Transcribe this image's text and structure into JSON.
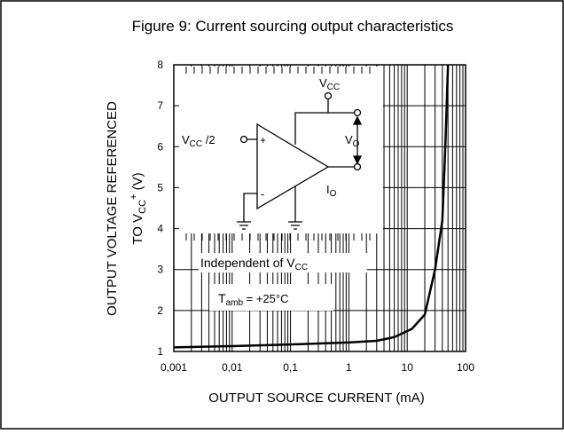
{
  "chart_data": {
    "type": "line",
    "title": "Figure 9: Current sourcing output characteristics",
    "x_label": "OUTPUT SOURCE CURRENT (mA)",
    "y_label": [
      "OUTPUT VOLTAGE REFERENCED",
      "TO V",
      "CC",
      "+",
      " (V)"
    ],
    "xscale": "log",
    "xlim": [
      0.001,
      100
    ],
    "xticks": [
      {
        "value": 0.001,
        "label": "0,001"
      },
      {
        "value": 0.01,
        "label": "0,01"
      },
      {
        "value": 0.1,
        "label": "0,1"
      },
      1,
      10,
      100
    ],
    "ylim": [
      1,
      8
    ],
    "yticks": [
      1,
      2,
      3,
      4,
      5,
      6,
      7,
      8
    ],
    "grid": true,
    "series": [
      {
        "color": "#000000",
        "x": [
          0.001,
          0.01,
          0.1,
          1,
          3,
          6,
          12,
          20,
          30,
          40,
          45,
          50
        ],
        "values": [
          1.1,
          1.13,
          1.17,
          1.22,
          1.26,
          1.35,
          1.55,
          1.9,
          3,
          4.2,
          6,
          8
        ]
      }
    ],
    "annotations": [
      [
        "Independent of V",
        "CC"
      ],
      [
        "T",
        "amb",
        "  = +25°C"
      ]
    ],
    "schematic": {
      "vcc": [
        "V",
        "CC"
      ],
      "vin": [
        "V",
        "CC",
        " /2"
      ],
      "plus": "+",
      "minus": "-",
      "vo": [
        "V",
        "O"
      ],
      "io": [
        "I",
        "O"
      ]
    }
  }
}
